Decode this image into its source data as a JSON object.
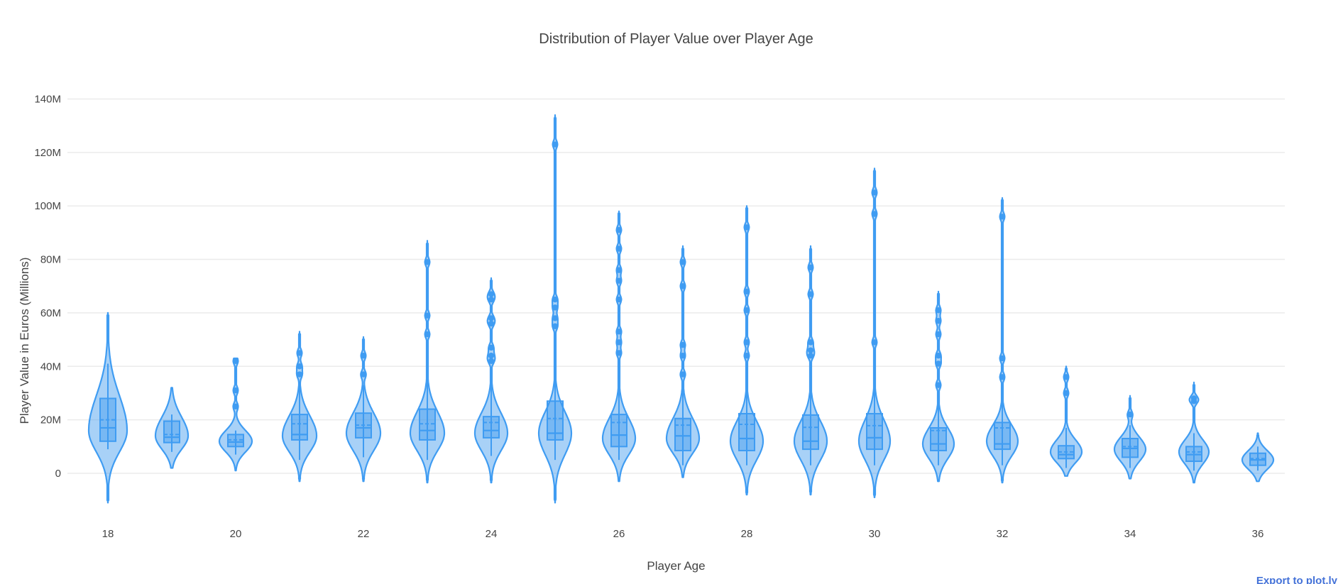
{
  "title": "Distribution of Player Value over Player Age",
  "x_axis_title": "Player Age",
  "y_axis_title": "Player Value in Euros (Millions)",
  "export_link_label": "Export to plot.ly",
  "colors": {
    "violin_line": "#3f9cf2",
    "violin_fill": "rgba(62,152,238,0.45)",
    "grid": "#ebebeb",
    "text": "#444444",
    "link": "#4472d8",
    "background": "#ffffff"
  },
  "chart_data": {
    "type": "violin",
    "title": "Distribution of Player Value over Player Age",
    "xlabel": "Player Age",
    "ylabel": "Player Value in Euros (Millions)",
    "legend": "none",
    "grid": "horizontal",
    "ylim_millions": [
      -15,
      150
    ],
    "y_ticks": [
      {
        "value": 0,
        "label": "0"
      },
      {
        "value": 20,
        "label": "20M"
      },
      {
        "value": 40,
        "label": "40M"
      },
      {
        "value": 60,
        "label": "60M"
      },
      {
        "value": 80,
        "label": "80M"
      },
      {
        "value": 100,
        "label": "100M"
      },
      {
        "value": 120,
        "label": "120M"
      },
      {
        "value": 140,
        "label": "140M"
      }
    ],
    "x_tick_labels": [
      18,
      20,
      22,
      24,
      26,
      28,
      30,
      32,
      34,
      36
    ],
    "series_units": "millions of euros",
    "series": [
      {
        "age": 18,
        "min": -11,
        "max": 60,
        "mode": 16,
        "peak_hw": 27,
        "spread_below": 8,
        "spread_above": 13,
        "q1": 12,
        "median": 17,
        "q3": 28,
        "mean": 20,
        "whisker_low": 9,
        "whisker_high": 41,
        "outliers": []
      },
      {
        "age": 19,
        "min": 2,
        "max": 32,
        "mode": 14,
        "peak_hw": 23,
        "spread_below": 5,
        "spread_above": 7,
        "q1": 11.5,
        "median": 13.5,
        "q3": 19.5,
        "mean": 14.5,
        "whisker_low": 8,
        "whisker_high": 22,
        "outliers": []
      },
      {
        "age": 20,
        "min": 1,
        "max": 43,
        "mode": 12,
        "peak_hw": 23,
        "spread_below": 4,
        "spread_above": 4,
        "q1": 10,
        "median": 11.7,
        "q3": 14.5,
        "mean": 12.5,
        "whisker_low": 7,
        "whisker_high": 16,
        "outliers": [
          42,
          31,
          25
        ]
      },
      {
        "age": 21,
        "min": -3,
        "max": 53,
        "mode": 14,
        "peak_hw": 24,
        "spread_below": 6,
        "spread_above": 7.5,
        "q1": 12.5,
        "median": 14.5,
        "q3": 22,
        "mean": 18.5,
        "whisker_low": 5,
        "whisker_high": 33,
        "outliers": [
          45,
          40,
          37
        ]
      },
      {
        "age": 22,
        "min": -3,
        "max": 51,
        "mode": 15,
        "peak_hw": 24,
        "spread_below": 6.5,
        "spread_above": 7.5,
        "q1": 13.3,
        "median": 17,
        "q3": 22.5,
        "mean": 18,
        "whisker_low": 6,
        "whisker_high": 33,
        "outliers": [
          44,
          37
        ]
      },
      {
        "age": 23,
        "min": -3.5,
        "max": 87,
        "mode": 15,
        "peak_hw": 24,
        "spread_below": 6.5,
        "spread_above": 8,
        "q1": 12.5,
        "median": 16,
        "q3": 24,
        "mean": 18.5,
        "whisker_low": 5,
        "whisker_high": 40,
        "outliers": [
          79,
          59,
          52
        ]
      },
      {
        "age": 24,
        "min": -3.5,
        "max": 73,
        "mode": 15,
        "peak_hw": 23,
        "spread_below": 6.5,
        "spread_above": 7.5,
        "q1": 13.3,
        "median": 16,
        "q3": 21.2,
        "mean": 19,
        "whisker_low": 6.5,
        "whisker_high": 35,
        "outliers": [
          67,
          65,
          58,
          56,
          47,
          44,
          42
        ]
      },
      {
        "age": 25,
        "min": -11,
        "max": 134,
        "mode": 15,
        "peak_hw": 23,
        "spread_below": 8,
        "spread_above": 8,
        "q1": 12.5,
        "median": 15,
        "q3": 27,
        "mean": 20.5,
        "whisker_low": 5,
        "whisker_high": 48,
        "outliers": [
          123,
          65,
          62,
          58,
          55
        ]
      },
      {
        "age": 26,
        "min": -3,
        "max": 98,
        "mode": 13,
        "peak_hw": 23,
        "spread_below": 6,
        "spread_above": 7.5,
        "q1": 10,
        "median": 14.3,
        "q3": 22,
        "mean": 19,
        "whisker_low": 5,
        "whisker_high": 40,
        "outliers": [
          91,
          84,
          76,
          72,
          65,
          53,
          49,
          45
        ]
      },
      {
        "age": 27,
        "min": -1.5,
        "max": 85,
        "mode": 13,
        "peak_hw": 23,
        "spread_below": 5.5,
        "spread_above": 7.5,
        "q1": 8.5,
        "median": 14,
        "q3": 20.5,
        "mean": 18,
        "whisker_low": 3,
        "whisker_high": 33,
        "outliers": [
          79,
          70,
          48,
          44,
          37
        ]
      },
      {
        "age": 28,
        "min": -8,
        "max": 100,
        "mode": 12,
        "peak_hw": 23,
        "spread_below": 7,
        "spread_above": 7.5,
        "q1": 8.5,
        "median": 13,
        "q3": 22.3,
        "mean": 18.3,
        "whisker_low": 3,
        "whisker_high": 40,
        "outliers": [
          92,
          68,
          61,
          49,
          44
        ]
      },
      {
        "age": 29,
        "min": -8,
        "max": 85,
        "mode": 12,
        "peak_hw": 23,
        "spread_below": 7,
        "spread_above": 7.5,
        "q1": 9,
        "median": 12,
        "q3": 21.8,
        "mean": 17.2,
        "whisker_low": 3,
        "whisker_high": 40,
        "outliers": [
          77,
          67,
          49,
          46,
          44
        ]
      },
      {
        "age": 30,
        "min": -9,
        "max": 114,
        "mode": 12,
        "peak_hw": 22,
        "spread_below": 7,
        "spread_above": 8,
        "q1": 9,
        "median": 13.3,
        "q3": 22.3,
        "mean": 17.8,
        "whisker_low": 3,
        "whisker_high": 45,
        "outliers": [
          105,
          97,
          49
        ]
      },
      {
        "age": 31,
        "min": -3,
        "max": 68,
        "mode": 11,
        "peak_hw": 22,
        "spread_below": 5.5,
        "spread_above": 6,
        "q1": 8.5,
        "median": 11,
        "q3": 17,
        "mean": 16,
        "whisker_low": 3,
        "whisker_high": 28,
        "outliers": [
          61,
          57,
          52,
          44,
          41,
          33
        ]
      },
      {
        "age": 32,
        "min": -3.5,
        "max": 103,
        "mode": 12,
        "peak_hw": 22,
        "spread_below": 5.5,
        "spread_above": 6,
        "q1": 9,
        "median": 11,
        "q3": 19,
        "mean": 17,
        "whisker_low": 3,
        "whisker_high": 30,
        "outliers": [
          96,
          43,
          36
        ]
      },
      {
        "age": 33,
        "min": -1,
        "max": 40,
        "mode": 8,
        "peak_hw": 22,
        "spread_below": 4,
        "spread_above": 4.5,
        "q1": 5.5,
        "median": 7,
        "q3": 10.3,
        "mean": 8,
        "whisker_low": 2,
        "whisker_high": 17,
        "outliers": [
          36,
          30
        ]
      },
      {
        "age": 34,
        "min": -2,
        "max": 29,
        "mode": 9,
        "peak_hw": 22,
        "spread_below": 4.5,
        "spread_above": 4.5,
        "q1": 6,
        "median": 9.3,
        "q3": 13,
        "mean": 10,
        "whisker_low": 2,
        "whisker_high": 18,
        "outliers": [
          22
        ]
      },
      {
        "age": 35,
        "min": -3.5,
        "max": 34,
        "mode": 8,
        "peak_hw": 21,
        "spread_below": 4.5,
        "spread_above": 4.5,
        "q1": 4.5,
        "median": 7,
        "q3": 10,
        "mean": 8,
        "whisker_low": 1,
        "whisker_high": 15,
        "outliers": [
          28,
          27
        ]
      },
      {
        "age": 36,
        "min": -3,
        "max": 15,
        "mode": 5,
        "peak_hw": 22,
        "spread_below": 3.5,
        "spread_above": 3.5,
        "q1": 3,
        "median": 5,
        "q3": 7.5,
        "mean": 5.5,
        "whisker_low": 1,
        "whisker_high": 10,
        "outliers": []
      }
    ]
  }
}
